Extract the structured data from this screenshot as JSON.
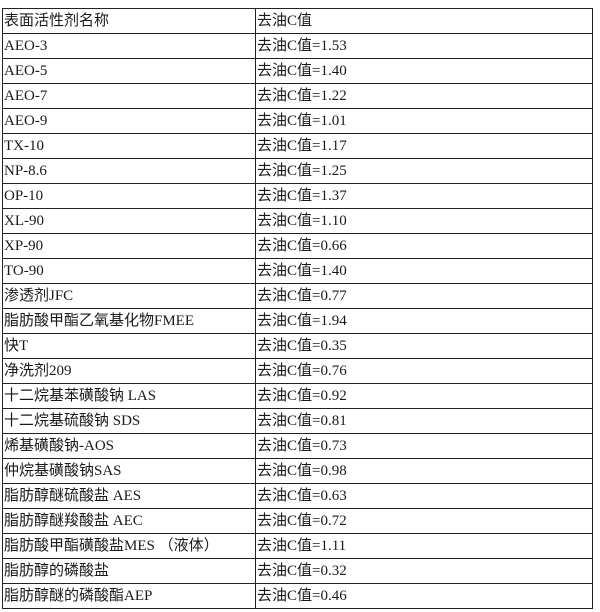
{
  "table": {
    "headers": [
      "表面活性剂名称",
      "去油C值"
    ],
    "rows": [
      [
        "AEO-3",
        "去油C值=1.53"
      ],
      [
        "AEO-5",
        "去油C值=1.40"
      ],
      [
        "AEO-7",
        "去油C值=1.22"
      ],
      [
        "AEO-9",
        "去油C值=1.01"
      ],
      [
        "TX-10",
        "去油C值=1.17"
      ],
      [
        "NP-8.6",
        "去油C值=1.25"
      ],
      [
        "OP-10",
        "去油C值=1.37"
      ],
      [
        "XL-90",
        "去油C值=1.10"
      ],
      [
        "XP-90",
        "去油C值=0.66"
      ],
      [
        "TO-90",
        "去油C值=1.40"
      ],
      [
        "渗透剂JFC",
        "去油C值=0.77"
      ],
      [
        "脂肪酸甲酯乙氧基化物FMEE",
        "去油C值=1.94"
      ],
      [
        "快T",
        "去油C值=0.35"
      ],
      [
        "净洗剂209",
        "去油C值=0.76"
      ],
      [
        "十二烷基苯磺酸钠 LAS",
        "去油C值=0.92"
      ],
      [
        "十二烷基硫酸钠 SDS",
        "去油C值=0.81"
      ],
      [
        "烯基磺酸钠-AOS",
        "去油C值=0.73"
      ],
      [
        "仲烷基磺酸钠SAS",
        "去油C值=0.98"
      ],
      [
        "脂肪醇醚硫酸盐 AES",
        "去油C值=0.63"
      ],
      [
        "脂肪醇醚羧酸盐 AEC",
        "去油C值=0.72"
      ],
      [
        "脂肪酸甲酯磺酸盐MES （液体）",
        "去油C值=1.11"
      ],
      [
        "脂肪醇的磷酸盐",
        "去油C值=0.32"
      ],
      [
        "脂肪醇醚的磷酸酯AEP",
        "去油C值=0.46"
      ]
    ]
  }
}
